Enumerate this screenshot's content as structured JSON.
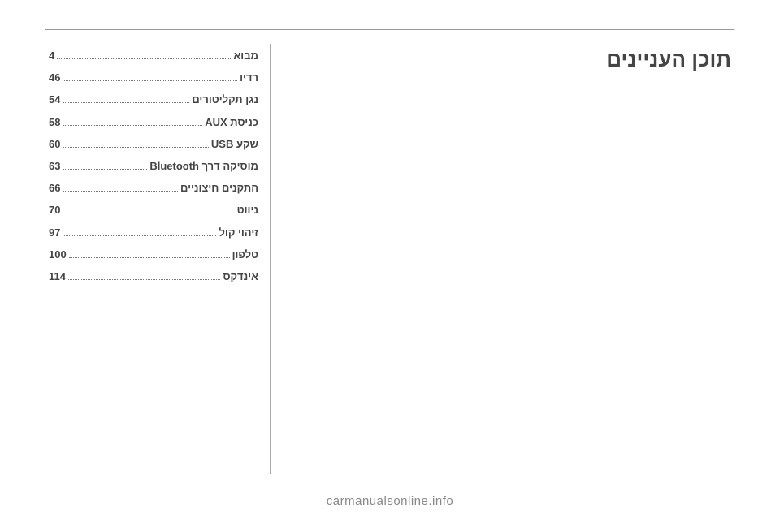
{
  "title": "תוכן העניינים",
  "toc": [
    {
      "label": "מבוא",
      "page": "4"
    },
    {
      "label": "רדיו",
      "page": "46"
    },
    {
      "label": "נגן תקליטורים",
      "page": "54"
    },
    {
      "label": "כניסת AUX",
      "page": "58"
    },
    {
      "label": "שקע USB",
      "page": "60"
    },
    {
      "label": "מוסיקה דרך Bluetooth",
      "page": "63"
    },
    {
      "label": "התקנים חיצוניים",
      "page": "66"
    },
    {
      "label": "ניווט",
      "page": "70"
    },
    {
      "label": "זיהוי קול",
      "page": "97"
    },
    {
      "label": "טלפון",
      "page": "100"
    },
    {
      "label": "אינדקס",
      "page": "114"
    }
  ],
  "footer": "carmanualsonline.info"
}
